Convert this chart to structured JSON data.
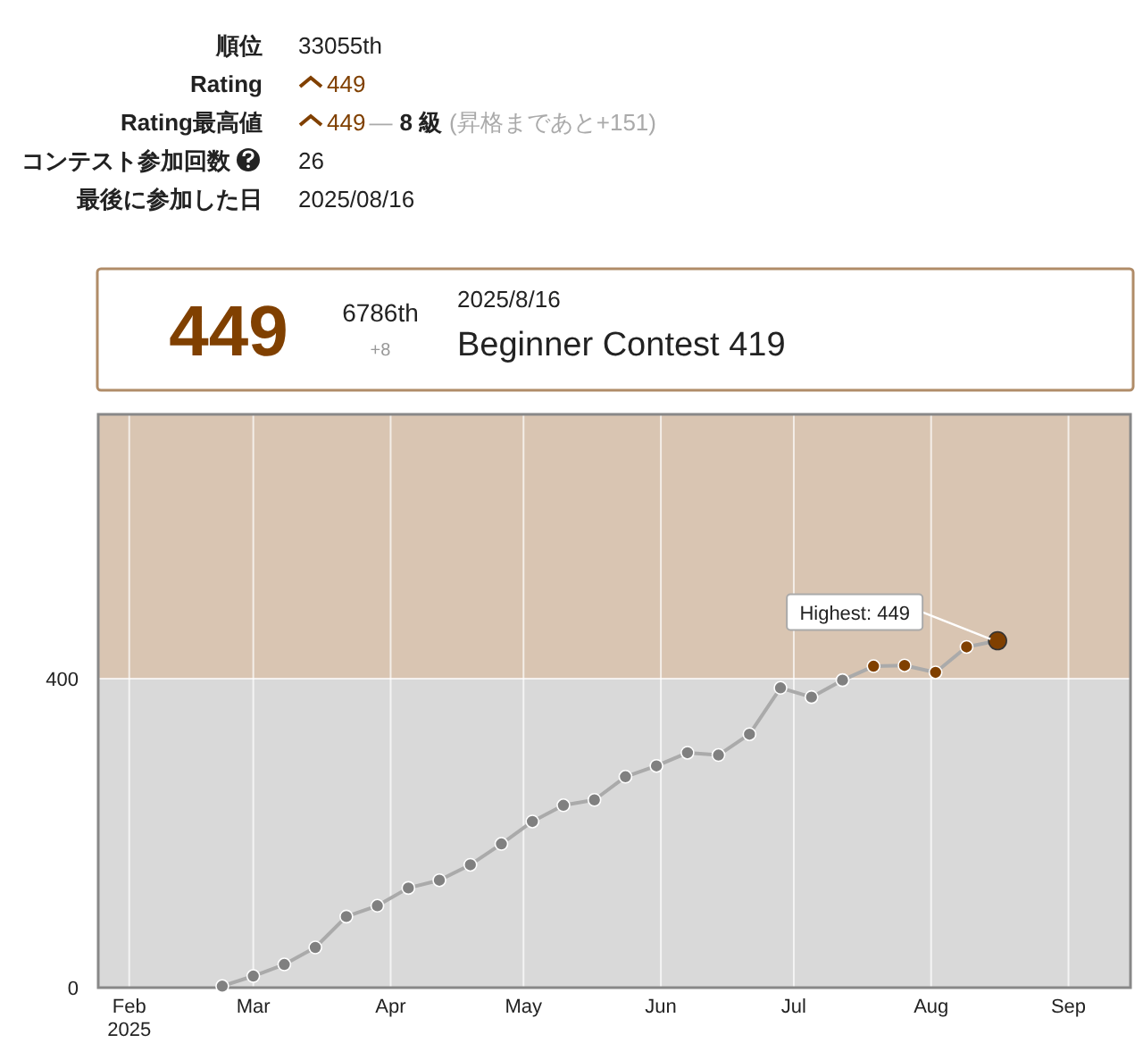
{
  "chart_data": [
    {
      "type": "other",
      "annotations": [
        "順位",
        "33055th",
        "Rating",
        "449",
        "Rating最高値",
        "449",
        "—",
        "8 級",
        "(昇格まであと+151)",
        "コンテスト参加回数",
        "26",
        "最後に参加した日",
        "2025/08/16"
      ]
    },
    {
      "type": "other",
      "annotations": [
        "449",
        "6786th",
        "+8",
        "2025/8/16",
        "Beginner Contest 419"
      ]
    },
    {
      "type": "line",
      "x": [
        "2025-02-22",
        "2025-03-01",
        "2025-03-08",
        "2025-03-15",
        "2025-03-22",
        "2025-03-29",
        "2025-04-05",
        "2025-04-12",
        "2025-04-19",
        "2025-04-26",
        "2025-05-03",
        "2025-05-10",
        "2025-05-17",
        "2025-05-24",
        "2025-05-31",
        "2025-06-07",
        "2025-06-14",
        "2025-06-21",
        "2025-06-28",
        "2025-07-05",
        "2025-07-12",
        "2025-07-19",
        "2025-07-26",
        "2025-08-02",
        "2025-08-09",
        "2025-08-16"
      ],
      "series": [
        {
          "color": "#aaaaaa",
          "values": [
            2,
            15,
            30,
            52,
            92,
            106,
            129,
            139,
            159,
            186,
            215,
            236,
            243,
            273,
            287,
            304,
            301,
            328,
            388,
            376,
            398,
            416,
            417,
            408,
            441,
            449
          ],
          "colors": [
            "#808080",
            "#808080",
            "#808080",
            "#808080",
            "#808080",
            "#808080",
            "#808080",
            "#808080",
            "#808080",
            "#808080",
            "#808080",
            "#808080",
            "#808080",
            "#808080",
            "#808080",
            "#808080",
            "#808080",
            "#808080",
            "#808080",
            "#808080",
            "#808080",
            "#804000",
            "#804000",
            "#804000",
            "#804000",
            "#804000"
          ]
        }
      ],
      "marker": "circle",
      "line_style": "solid",
      "grid": true,
      "xlim": [
        "2025-01-25",
        "2025-09-15"
      ],
      "xticks": [
        {
          "value": "2025-02-01",
          "label": "Feb 2025"
        },
        {
          "value": "2025-03-01",
          "label": "Mar"
        },
        {
          "value": "2025-04-01",
          "label": "Apr"
        },
        {
          "value": "2025-05-01",
          "label": "May"
        },
        {
          "value": "2025-06-01",
          "label": "Jun"
        },
        {
          "value": "2025-07-01",
          "label": "Jul"
        },
        {
          "value": "2025-08-01",
          "label": "Aug"
        },
        {
          "value": "2025-09-01",
          "label": "Sep"
        }
      ],
      "ylim": [
        0,
        742
      ],
      "yticks": [
        0,
        400
      ],
      "bands": [
        {
          "axis": "y",
          "from": 0,
          "to": 400,
          "color": "#d9d9d9"
        },
        {
          "axis": "y",
          "from": 400,
          "to": 742,
          "color": "#d9c5b2"
        }
      ],
      "annotations": [
        {
          "text": "Highest: 449",
          "x": "2025-08-16",
          "y": 449
        }
      ]
    }
  ]
}
